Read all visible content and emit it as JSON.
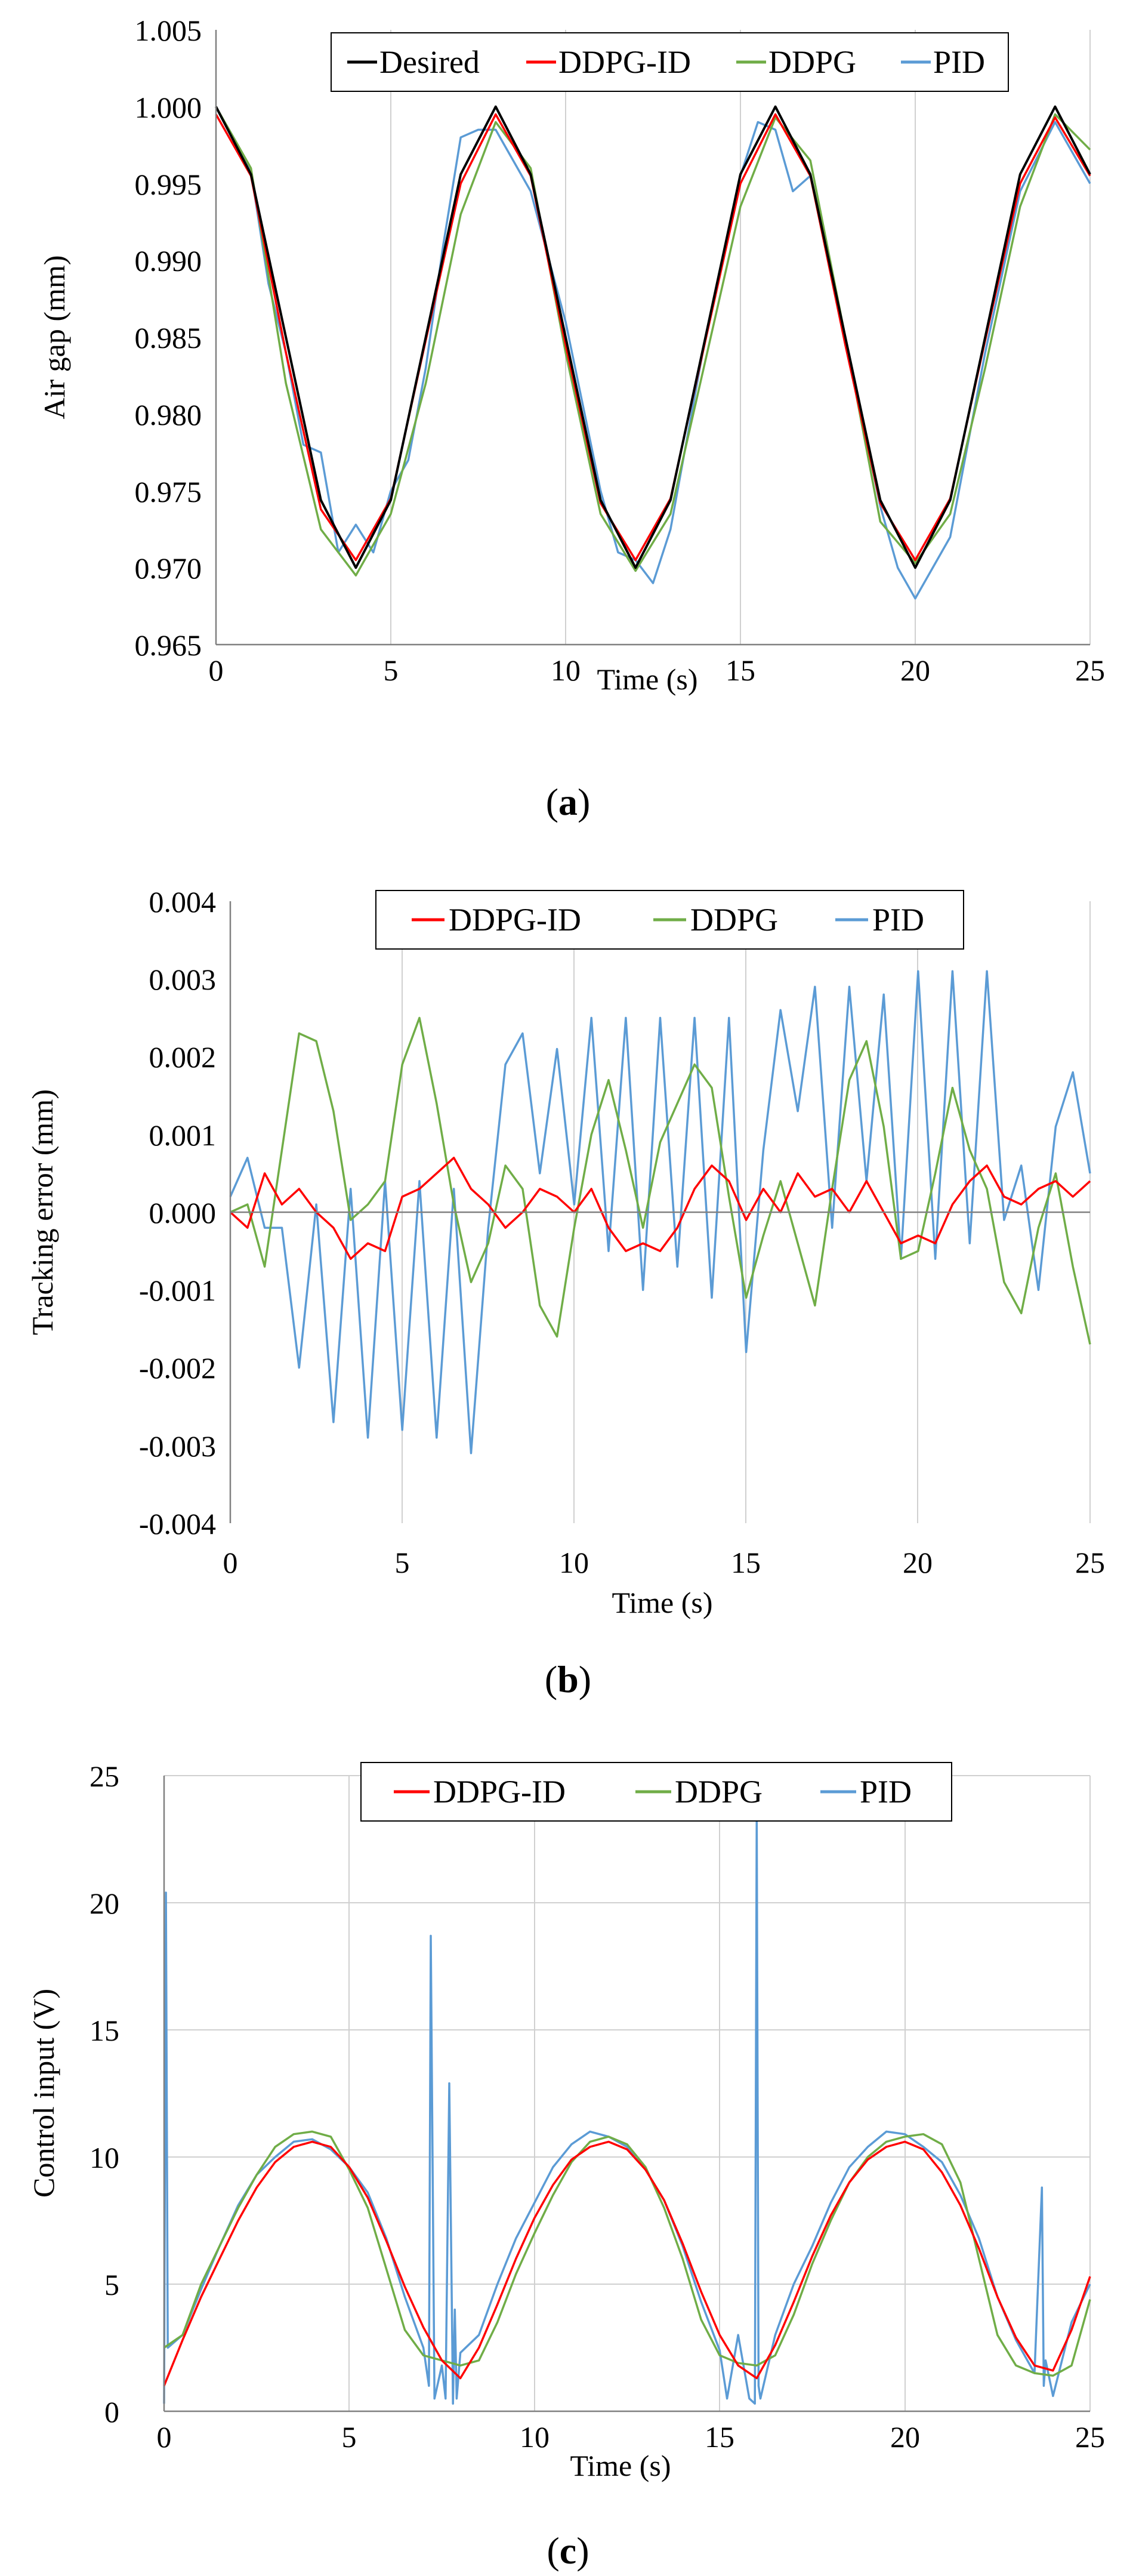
{
  "figure": {
    "panels": [
      {
        "caption_open": "(",
        "caption_letter": "a",
        "caption_close": ")"
      },
      {
        "caption_open": "(",
        "caption_letter": "b",
        "caption_close": ")"
      },
      {
        "caption_open": "(",
        "caption_letter": "c",
        "caption_close": ")"
      }
    ]
  },
  "colors": {
    "Desired": "#000000",
    "DDPG-ID": "#ff0000",
    "DDPG": "#70ad47",
    "PID": "#5b9bd5"
  },
  "chart_data": [
    {
      "id": "a",
      "type": "line",
      "title": "",
      "xlabel": "Time (s)",
      "ylabel": "Air gap (mm)",
      "xlim": [
        0,
        25
      ],
      "ylim": [
        0.965,
        1.005
      ],
      "xticks": [
        0,
        5,
        10,
        15,
        20,
        25
      ],
      "yticks": [
        0.965,
        0.97,
        0.975,
        0.98,
        0.985,
        0.99,
        0.995,
        1.0,
        1.005
      ],
      "ytick_decimals": 3,
      "grid": "vertical",
      "legend_position": "top-center",
      "series": [
        {
          "name": "Desired",
          "x": [
            0,
            1,
            2,
            3,
            4,
            5,
            6,
            7,
            8,
            9,
            10,
            11,
            12,
            13,
            14,
            15,
            16,
            17,
            18,
            19,
            20,
            21,
            22,
            23,
            24,
            25
          ],
          "y": [
            1.0,
            0.9956,
            0.985,
            0.9744,
            0.97,
            0.9744,
            0.985,
            0.9956,
            1.0,
            0.9956,
            0.985,
            0.9744,
            0.97,
            0.9744,
            0.985,
            0.9956,
            1.0,
            0.9956,
            0.985,
            0.9744,
            0.97,
            0.9744,
            0.985,
            0.9956,
            1.0,
            0.9956
          ]
        },
        {
          "name": "DDPG-ID",
          "x": [
            0,
            1,
            2,
            3,
            4,
            5,
            6,
            7,
            8,
            9,
            10,
            11,
            12,
            13,
            14,
            15,
            16,
            17,
            18,
            19,
            20,
            21,
            22,
            23,
            24,
            25
          ],
          "y": [
            0.9995,
            0.9955,
            0.984,
            0.9738,
            0.9705,
            0.9745,
            0.9848,
            0.995,
            0.9995,
            0.9955,
            0.9845,
            0.9742,
            0.9705,
            0.9745,
            0.9848,
            0.995,
            0.9995,
            0.9955,
            0.9845,
            0.9742,
            0.9705,
            0.9745,
            0.9848,
            0.995,
            0.9993,
            0.9955
          ]
        },
        {
          "name": "DDPG",
          "x": [
            0,
            1,
            2,
            3,
            4,
            5,
            6,
            7,
            8,
            9,
            10,
            11,
            12,
            13,
            14,
            15,
            16,
            17,
            18,
            19,
            20,
            21,
            22,
            23,
            24,
            25
          ],
          "y": [
            1.0,
            0.996,
            0.982,
            0.9725,
            0.9695,
            0.9735,
            0.982,
            0.993,
            0.999,
            0.996,
            0.984,
            0.9735,
            0.9698,
            0.9735,
            0.9835,
            0.9935,
            0.9993,
            0.9965,
            0.985,
            0.973,
            0.9703,
            0.9735,
            0.983,
            0.9935,
            0.9995,
            0.9972
          ]
        },
        {
          "name": "PID",
          "x": [
            0,
            1,
            1.5,
            2,
            2.5,
            3,
            3.5,
            4,
            4.5,
            5,
            5.5,
            6,
            6.5,
            7,
            7.5,
            8,
            9,
            10,
            11,
            11.5,
            12,
            12.5,
            13,
            14,
            15,
            15.5,
            16,
            16.5,
            17,
            18,
            19,
            19.5,
            20,
            20.5,
            21,
            22,
            23,
            24,
            25
          ],
          "y": [
            1.0,
            0.9958,
            0.9885,
            0.984,
            0.978,
            0.9775,
            0.971,
            0.9728,
            0.971,
            0.975,
            0.977,
            0.983,
            0.991,
            0.998,
            0.9985,
            0.9985,
            0.9945,
            0.986,
            0.975,
            0.971,
            0.9705,
            0.969,
            0.9725,
            0.985,
            0.9955,
            0.999,
            0.9985,
            0.9945,
            0.9955,
            0.985,
            0.974,
            0.97,
            0.968,
            0.97,
            0.972,
            0.984,
            0.9945,
            0.999,
            0.995
          ]
        }
      ]
    },
    {
      "id": "b",
      "type": "line",
      "title": "",
      "xlabel": "Time (s)",
      "ylabel": "Tracking error (mm)",
      "xlim": [
        0,
        25
      ],
      "ylim": [
        -0.004,
        0.004
      ],
      "xticks": [
        0,
        5,
        10,
        15,
        20,
        25
      ],
      "yticks": [
        -0.004,
        -0.003,
        -0.002,
        -0.001,
        0.0,
        0.001,
        0.002,
        0.003,
        0.004
      ],
      "ytick_decimals": 3,
      "grid": "vertical",
      "legend_position": "top-center",
      "series": [
        {
          "name": "DDPG-ID",
          "x": [
            0,
            0.5,
            1,
            1.5,
            2,
            2.5,
            3,
            3.5,
            4,
            4.5,
            5,
            5.5,
            6,
            6.5,
            7,
            7.5,
            8,
            8.5,
            9,
            9.5,
            10,
            10.5,
            11,
            11.5,
            12,
            12.5,
            13,
            13.5,
            14,
            14.5,
            15,
            15.5,
            16,
            16.5,
            17,
            17.5,
            18,
            18.5,
            19,
            19.5,
            20,
            20.5,
            21,
            21.5,
            22,
            22.5,
            23,
            23.5,
            24,
            24.5,
            25
          ],
          "y": [
            0.0,
            -0.0002,
            0.0005,
            0.0001,
            0.0003,
            0.0,
            -0.0002,
            -0.0006,
            -0.0004,
            -0.0005,
            0.0002,
            0.0003,
            0.0005,
            0.0007,
            0.0003,
            0.0001,
            -0.0002,
            0.0,
            0.0003,
            0.0002,
            0.0,
            0.0003,
            -0.0002,
            -0.0005,
            -0.0004,
            -0.0005,
            -0.0002,
            0.0003,
            0.0006,
            0.0004,
            -0.0001,
            0.0003,
            0.0,
            0.0005,
            0.0002,
            0.0003,
            0.0,
            0.0004,
            0.0,
            -0.0004,
            -0.0003,
            -0.0004,
            0.0001,
            0.0004,
            0.0006,
            0.0002,
            0.0001,
            0.0003,
            0.0004,
            0.0002,
            0.0004
          ]
        },
        {
          "name": "DDPG",
          "x": [
            0,
            0.5,
            1,
            1.5,
            2,
            2.5,
            3,
            3.5,
            4,
            4.5,
            5,
            5.5,
            6,
            6.5,
            7,
            7.5,
            8,
            8.5,
            9,
            9.5,
            10,
            10.5,
            11,
            11.5,
            12,
            12.5,
            13,
            13.5,
            14,
            14.5,
            15,
            15.5,
            16,
            16.5,
            17,
            17.5,
            18,
            18.5,
            19,
            19.5,
            20,
            20.5,
            21,
            21.5,
            22,
            22.5,
            23,
            23.5,
            24,
            24.5,
            25
          ],
          "y": [
            0.0,
            0.0001,
            -0.0007,
            0.0008,
            0.0023,
            0.0022,
            0.0013,
            -0.0001,
            0.0001,
            0.0004,
            0.0019,
            0.0025,
            0.0014,
            0.0001,
            -0.0009,
            -0.0004,
            0.0006,
            0.0003,
            -0.0012,
            -0.0016,
            -0.0002,
            0.001,
            0.0017,
            0.0008,
            -0.0002,
            0.0009,
            0.0014,
            0.0019,
            0.0016,
            0.0002,
            -0.0011,
            -0.0003,
            0.0004,
            -0.0004,
            -0.0012,
            0.0003,
            0.0017,
            0.0022,
            0.0011,
            -0.0006,
            -0.0005,
            0.0005,
            0.0016,
            0.0008,
            0.0003,
            -0.0009,
            -0.0013,
            -0.0002,
            0.0005,
            -0.0007,
            -0.0017
          ]
        },
        {
          "name": "PID",
          "x": [
            0,
            0.5,
            1,
            1.5,
            2,
            2.5,
            3,
            3.5,
            4,
            4.5,
            5,
            5.5,
            6,
            6.5,
            7,
            7.5,
            8,
            8.5,
            9,
            9.5,
            10,
            10.5,
            11,
            11.5,
            12,
            12.5,
            13,
            13.5,
            14,
            14.5,
            15,
            15.5,
            16,
            16.5,
            17,
            17.5,
            18,
            18.5,
            19,
            19.5,
            20,
            20.5,
            21,
            21.5,
            22,
            22.5,
            23,
            23.5,
            24,
            24.5,
            25
          ],
          "y": [
            0.0002,
            0.0007,
            -0.0002,
            -0.0002,
            -0.002,
            0.0001,
            -0.0027,
            0.0003,
            -0.0029,
            0.0004,
            -0.0028,
            0.0004,
            -0.0029,
            0.0003,
            -0.0031,
            -0.0002,
            0.0019,
            0.0023,
            0.0005,
            0.0021,
            0.0001,
            0.0025,
            -0.0005,
            0.0025,
            -0.001,
            0.0025,
            -0.0007,
            0.0025,
            -0.0011,
            0.0025,
            -0.0018,
            0.0008,
            0.0026,
            0.0013,
            0.0029,
            -0.0002,
            0.0029,
            0.0004,
            0.0028,
            -0.0006,
            0.0031,
            -0.0006,
            0.0031,
            -0.0004,
            0.0031,
            -0.0001,
            0.0006,
            -0.001,
            0.0011,
            0.0018,
            0.0005
          ]
        }
      ]
    },
    {
      "id": "c",
      "type": "line",
      "title": "",
      "xlabel": "Time (s)",
      "ylabel": "Control input (V)",
      "xlim": [
        0,
        25
      ],
      "ylim": [
        0,
        25
      ],
      "xticks": [
        0,
        5,
        10,
        15,
        20,
        25
      ],
      "yticks": [
        0,
        5,
        10,
        15,
        20,
        25
      ],
      "ytick_decimals": 0,
      "grid": "both",
      "legend_position": "top-center",
      "series": [
        {
          "name": "DDPG-ID",
          "x": [
            0,
            0.5,
            1,
            1.5,
            2,
            2.5,
            3,
            3.5,
            4,
            4.5,
            5,
            5.5,
            6,
            6.5,
            7,
            7.5,
            8,
            8.5,
            9,
            9.5,
            10,
            10.5,
            11,
            11.5,
            12,
            12.5,
            13,
            13.5,
            14,
            14.5,
            15,
            15.5,
            16,
            16.5,
            17,
            17.5,
            18,
            18.5,
            19,
            19.5,
            20,
            20.5,
            21,
            21.5,
            22,
            22.5,
            23,
            23.5,
            24,
            24.5,
            25
          ],
          "y": [
            1.0,
            2.8,
            4.5,
            6.0,
            7.5,
            8.8,
            9.8,
            10.4,
            10.6,
            10.4,
            9.6,
            8.4,
            6.7,
            4.9,
            3.3,
            2.0,
            1.3,
            2.5,
            4.2,
            6.0,
            7.6,
            8.9,
            9.9,
            10.4,
            10.6,
            10.3,
            9.5,
            8.3,
            6.6,
            4.7,
            3.0,
            1.8,
            1.3,
            2.6,
            4.3,
            6.1,
            7.7,
            9.0,
            9.9,
            10.4,
            10.6,
            10.3,
            9.4,
            8.1,
            6.4,
            4.5,
            2.9,
            1.8,
            1.6,
            3.2,
            5.3
          ]
        },
        {
          "name": "DDPG",
          "x": [
            0,
            0.5,
            1,
            1.5,
            2,
            2.5,
            3,
            3.5,
            4,
            4.5,
            5,
            5.5,
            6,
            6.5,
            7,
            7.5,
            8,
            8.5,
            9,
            9.5,
            10,
            10.5,
            11,
            11.5,
            12,
            12.5,
            13,
            13.5,
            14,
            14.5,
            15,
            15.5,
            16,
            16.5,
            17,
            17.5,
            18,
            18.5,
            19,
            19.5,
            20,
            20.5,
            21,
            21.5,
            22,
            22.5,
            23,
            23.5,
            24,
            24.5,
            25
          ],
          "y": [
            2.5,
            3.0,
            5.0,
            6.5,
            8.0,
            9.3,
            10.4,
            10.9,
            11.0,
            10.8,
            9.5,
            8.0,
            5.6,
            3.2,
            2.2,
            2.0,
            1.8,
            2.0,
            3.5,
            5.4,
            7.0,
            8.5,
            9.8,
            10.6,
            10.8,
            10.5,
            9.6,
            8.0,
            6.0,
            3.6,
            2.2,
            1.9,
            1.8,
            2.2,
            3.8,
            5.8,
            7.5,
            9.0,
            10.0,
            10.6,
            10.8,
            10.9,
            10.5,
            9.0,
            6.0,
            3.0,
            1.8,
            1.5,
            1.4,
            1.8,
            4.4
          ]
        },
        {
          "name": "PID",
          "x": [
            0,
            0.05,
            0.1,
            0.5,
            1,
            1.5,
            2,
            2.5,
            3,
            3.5,
            4,
            4.5,
            5,
            5.5,
            6,
            6.5,
            7,
            7.15,
            7.2,
            7.3,
            7.5,
            7.6,
            7.7,
            7.8,
            7.85,
            7.9,
            8,
            8.5,
            9,
            9.5,
            10,
            10.5,
            11,
            11.5,
            12,
            12.5,
            13,
            13.5,
            14,
            14.5,
            15,
            15.2,
            15.5,
            15.8,
            15.95,
            16,
            16.05,
            16.1,
            16.5,
            17,
            17.5,
            18,
            18.5,
            19,
            19.5,
            20,
            20.5,
            21,
            21.5,
            22,
            22.5,
            23,
            23.5,
            23.7,
            23.75,
            23.8,
            24,
            24.5,
            25
          ],
          "y": [
            0.3,
            20.4,
            2.5,
            3.0,
            4.8,
            6.5,
            8.1,
            9.3,
            10.0,
            10.6,
            10.7,
            10.3,
            9.6,
            8.6,
            6.8,
            4.5,
            2.5,
            1.0,
            18.7,
            0.5,
            1.8,
            0.5,
            12.9,
            0.3,
            4.0,
            0.5,
            2.3,
            3.0,
            5.0,
            6.8,
            8.2,
            9.6,
            10.5,
            11.0,
            10.8,
            10.4,
            9.5,
            8.3,
            6.5,
            4.3,
            2.4,
            0.5,
            3.0,
            0.5,
            0.3,
            23.5,
            1.0,
            0.5,
            3.0,
            5.0,
            6.5,
            8.2,
            9.6,
            10.4,
            11.0,
            10.9,
            10.4,
            9.8,
            8.5,
            6.8,
            4.5,
            2.8,
            1.5,
            8.8,
            1.0,
            2.0,
            0.6,
            3.5,
            5.0
          ]
        }
      ]
    }
  ]
}
